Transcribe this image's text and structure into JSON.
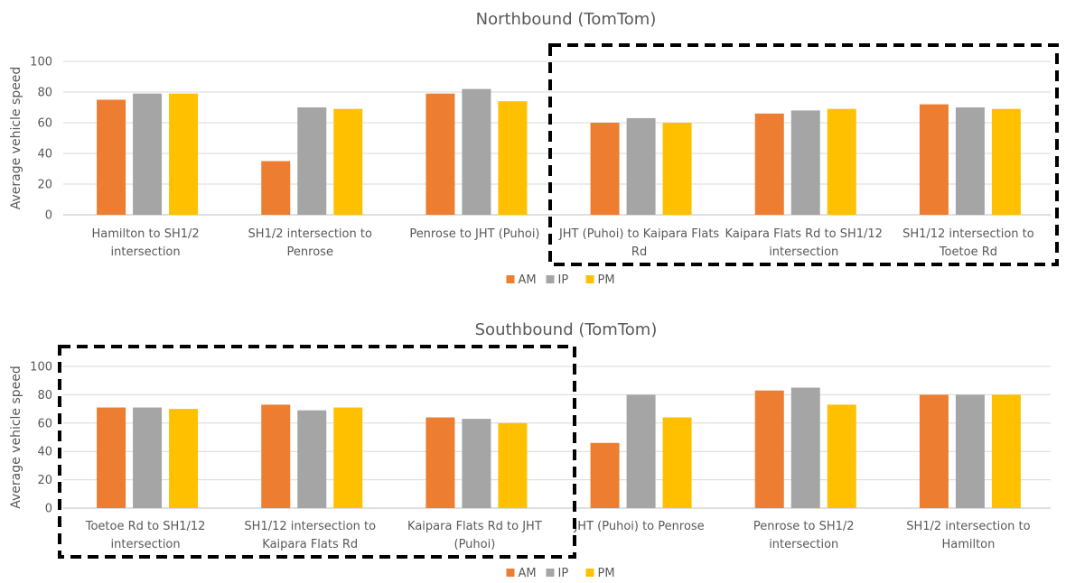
{
  "colors": {
    "AM": "#ED7D31",
    "IP": "#A5A5A5",
    "PM": "#FFC000"
  },
  "chart_data": [
    {
      "type": "bar",
      "title": "Northbound (TomTom)",
      "ylabel": "Average vehicle speed",
      "ylim": [
        0,
        100
      ],
      "yticks": [
        0,
        20,
        40,
        60,
        80,
        100
      ],
      "legend": "bottom",
      "grid": true,
      "categories": [
        [
          "Hamilton to SH1/2",
          "intersection"
        ],
        [
          "SH1/2 intersection to",
          "Penrose"
        ],
        [
          "Penrose to JHT (Puhoi)"
        ],
        [
          "JHT (Puhoi) to Kaipara Flats",
          "Rd"
        ],
        [
          "Kaipara Flats Rd to SH1/12",
          "intersection"
        ],
        [
          "SH1/12 intersection to",
          "Toetoe Rd"
        ]
      ],
      "highlighted_categories": [
        3,
        5
      ],
      "series": [
        {
          "name": "AM",
          "values": [
            75,
            35,
            79,
            60,
            66,
            72
          ]
        },
        {
          "name": "IP",
          "values": [
            79,
            70,
            82,
            63,
            68,
            70
          ]
        },
        {
          "name": "PM",
          "values": [
            79,
            69,
            74,
            60,
            69,
            69
          ]
        }
      ]
    },
    {
      "type": "bar",
      "title": "Southbound (TomTom)",
      "ylabel": "Average vehicle speed",
      "ylim": [
        0,
        100
      ],
      "yticks": [
        0,
        20,
        40,
        60,
        80,
        100
      ],
      "legend": "bottom",
      "grid": true,
      "categories": [
        [
          "Toetoe Rd to SH1/12",
          "intersection"
        ],
        [
          "SH1/12 intersection to",
          "Kaipara Flats Rd"
        ],
        [
          "Kaipara Flats Rd to JHT",
          "(Puhoi)"
        ],
        [
          "JHT (Puhoi) to Penrose"
        ],
        [
          "Penrose to SH1/2",
          "intersection"
        ],
        [
          "SH1/2 intersection to",
          "Hamilton"
        ]
      ],
      "highlighted_categories": [
        0,
        2
      ],
      "series": [
        {
          "name": "AM",
          "values": [
            71,
            73,
            64,
            46,
            83,
            80
          ]
        },
        {
          "name": "IP",
          "values": [
            71,
            69,
            63,
            80,
            85,
            80
          ]
        },
        {
          "name": "PM",
          "values": [
            70,
            71,
            60,
            64,
            73,
            80
          ]
        }
      ]
    }
  ]
}
